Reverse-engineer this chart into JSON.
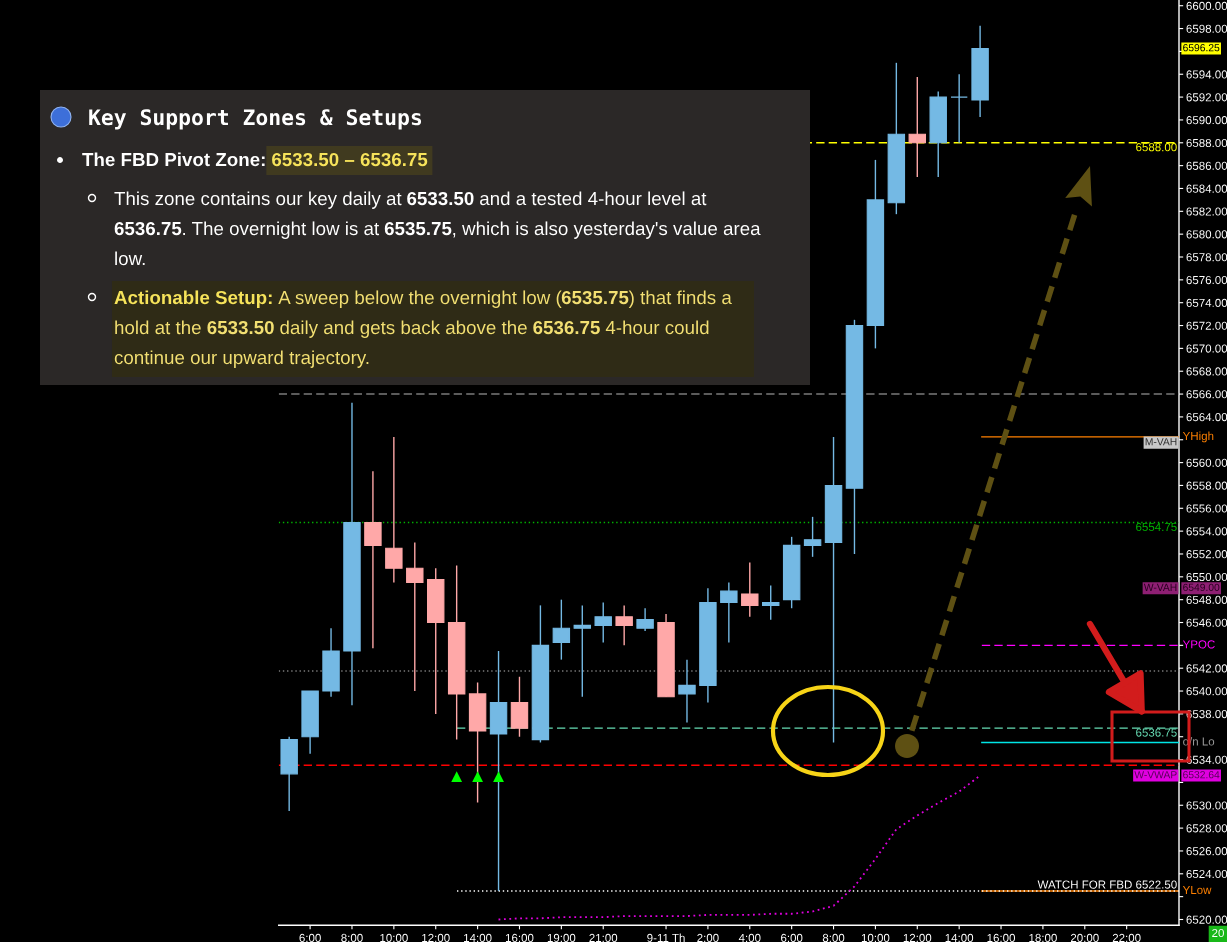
{
  "chart_data": {
    "type": "candlestick",
    "categories": [
      null,
      "6:00",
      null,
      "8:00",
      null,
      "10:00",
      null,
      "12:00",
      null,
      "14:00",
      null,
      "16:00",
      null,
      "19:00",
      null,
      "21:00",
      null,
      null,
      "9-11 Th",
      null,
      "2:00",
      null,
      "4:00",
      null,
      "6:00",
      null,
      "8:00",
      null,
      "10:00",
      null,
      "12:00",
      null,
      "14:00",
      null,
      "16:00",
      null,
      "18:00",
      null,
      "20:00",
      null,
      "22:00",
      null,
      null
    ],
    "ohlc": [
      [
        6532.75,
        6536.0,
        6529.5,
        6535.75
      ],
      [
        6536.0,
        6540.0,
        6534.5,
        6540.0
      ],
      [
        6540.0,
        6545.5,
        6539.5,
        6543.5
      ],
      [
        6543.5,
        6565.25,
        6538.75,
        6554.75
      ],
      [
        6554.75,
        6559.25,
        6543.75,
        6552.75
      ],
      [
        6552.5,
        6562.25,
        6549.5,
        6550.75
      ],
      [
        6550.75,
        6553.0,
        6540.0,
        6549.5
      ],
      [
        6549.75,
        6550.75,
        6538.0,
        6546.0
      ],
      [
        6546.0,
        6551.0,
        6535.75,
        6539.75
      ],
      [
        6539.75,
        6540.75,
        6530.25,
        6536.5
      ],
      [
        6536.25,
        6543.5,
        6522.5,
        6539.0
      ],
      [
        6539.0,
        6541.25,
        6536.0,
        6536.75
      ],
      [
        6535.75,
        6547.5,
        6535.5,
        6544.0
      ],
      [
        6544.25,
        6548.0,
        6542.75,
        6545.5
      ],
      [
        6545.5,
        6547.5,
        6539.5,
        6545.75
      ],
      [
        6545.75,
        6547.75,
        6544.25,
        6546.5
      ],
      [
        6546.5,
        6547.5,
        6544.0,
        6545.75
      ],
      [
        6545.5,
        6547.25,
        6545.25,
        6546.25
      ],
      [
        6546.0,
        6546.75,
        6539.5,
        6539.5
      ],
      [
        6539.75,
        6542.75,
        6537.25,
        6540.5
      ],
      [
        6540.5,
        6549.0,
        6539.0,
        6547.75
      ],
      [
        6547.75,
        6549.5,
        6544.25,
        6548.75
      ],
      [
        6548.5,
        6551.25,
        6546.5,
        6547.5
      ],
      [
        6547.5,
        6549.25,
        6546.25,
        6547.75
      ],
      [
        6548.0,
        6553.5,
        6547.25,
        6552.75
      ],
      [
        6552.75,
        6555.25,
        6551.75,
        6553.25
      ],
      [
        6553.0,
        6562.25,
        6535.5,
        6558.0
      ],
      [
        6557.75,
        6572.5,
        6552.0,
        6572.0
      ],
      [
        6572.0,
        6586.5,
        6570.0,
        6583.0
      ],
      [
        6582.75,
        6595.0,
        6581.75,
        6588.75
      ],
      [
        6588.75,
        6593.75,
        6585.0,
        6588.0
      ],
      [
        6588.0,
        6592.5,
        6585.0,
        6592.0
      ],
      [
        6592.0,
        6594.0,
        6588.0,
        6592.0
      ],
      [
        6591.75,
        6598.25,
        6590.25,
        6596.25
      ],
      null,
      null,
      null,
      null,
      null,
      null,
      null,
      null,
      null
    ],
    "colors": [
      "#74b9e4",
      "#74b9e4",
      "#74b9e4",
      "#74b9e4",
      "#ffa8a8",
      "#ffa8a8",
      "#ffa8a8",
      "#ffa8a8",
      "#ffa8a8",
      "#ffa8a8",
      "#74b9e4",
      "#ffa8a8",
      "#74b9e4",
      "#74b9e4",
      "#74b9e4",
      "#74b9e4",
      "#ffa8a8",
      "#74b9e4",
      "#ffa8a8",
      "#74b9e4",
      "#74b9e4",
      "#74b9e4",
      "#ffa8a8",
      "#74b9e4",
      "#74b9e4",
      "#74b9e4",
      "#74b9e4",
      "#74b9e4",
      "#74b9e4",
      "#74b9e4",
      "#ffa8a8",
      "#74b9e4",
      "#74b9e4",
      "#74b9e4",
      null,
      null,
      null,
      null,
      null,
      null,
      null,
      null,
      null
    ],
    "series": [
      {
        "type": "line",
        "color": "#e000e0",
        "line_style": "dotted",
        "values": [
          null,
          null,
          null,
          null,
          null,
          null,
          null,
          null,
          null,
          null,
          6520.0,
          6520.1,
          6520.1,
          6520.2,
          6520.2,
          6520.2,
          6520.3,
          6520.3,
          6520.3,
          6520.3,
          6520.4,
          6520.4,
          6520.4,
          6520.5,
          6520.5,
          6520.7,
          6521.2,
          6522.9,
          6525.3,
          6527.9,
          6529.1,
          6530.2,
          6531.2,
          6532.6,
          null,
          null,
          null,
          null,
          null,
          null,
          null,
          null,
          null
        ]
      },
      {
        "type": "scatter",
        "color": "#00ff00",
        "marker": "triangle",
        "values": [
          null,
          null,
          null,
          null,
          null,
          null,
          null,
          null,
          6532.5,
          6532.5,
          6532.5,
          null,
          null,
          null,
          null,
          null,
          null,
          null,
          null,
          null,
          null,
          null,
          null,
          null,
          null,
          null,
          null,
          null,
          null,
          null,
          null,
          null,
          null,
          null,
          null,
          null,
          null,
          null,
          null,
          null,
          null,
          null,
          null
        ]
      }
    ],
    "ylim": [
      6519.5,
      6600.5
    ],
    "yticks": [
      {
        "value": 6520,
        "label": "6520.00"
      },
      {
        "value": 6522,
        "label": null
      },
      {
        "value": 6524,
        "label": "6524.00"
      },
      {
        "value": 6526,
        "label": "6526.00"
      },
      {
        "value": 6528,
        "label": "6528.00"
      },
      {
        "value": 6530,
        "label": "6530.00"
      },
      {
        "value": 6532,
        "label": null
      },
      {
        "value": 6534,
        "label": "6534.00"
      },
      {
        "value": 6536,
        "label": null
      },
      {
        "value": 6538,
        "label": "6538.00"
      },
      {
        "value": 6540,
        "label": "6540.00"
      },
      {
        "value": 6542,
        "label": "6542.00"
      },
      {
        "value": 6544,
        "label": null
      },
      {
        "value": 6546,
        "label": "6546.00"
      },
      {
        "value": 6548,
        "label": "6548.00"
      },
      {
        "value": 6550,
        "label": "6550.00"
      },
      {
        "value": 6552,
        "label": "6552.00"
      },
      {
        "value": 6554,
        "label": "6554.00"
      },
      {
        "value": 6556,
        "label": "6556.00"
      },
      {
        "value": 6558,
        "label": "6558.00"
      },
      {
        "value": 6560,
        "label": "6560.00"
      },
      {
        "value": 6562,
        "label": null
      },
      {
        "value": 6564,
        "label": "6564.00"
      },
      {
        "value": 6566,
        "label": "6566.00"
      },
      {
        "value": 6568,
        "label": "6568.00"
      },
      {
        "value": 6570,
        "label": "6570.00"
      },
      {
        "value": 6572,
        "label": "6572.00"
      },
      {
        "value": 6574,
        "label": "6574.00"
      },
      {
        "value": 6576,
        "label": "6576.00"
      },
      {
        "value": 6578,
        "label": "6578.00"
      },
      {
        "value": 6580,
        "label": "6580.00"
      },
      {
        "value": 6582,
        "label": "6582.00"
      },
      {
        "value": 6584,
        "label": "6584.00"
      },
      {
        "value": 6586,
        "label": "6586.00"
      },
      {
        "value": 6588,
        "label": "6588.00"
      },
      {
        "value": 6590,
        "label": "6590.00"
      },
      {
        "value": 6592,
        "label": "6592.00"
      },
      {
        "value": 6594,
        "label": "6594.00"
      },
      {
        "value": 6596,
        "label": null
      },
      {
        "value": 6598,
        "label": "6598.00"
      },
      {
        "value": 6600,
        "label": "6600.00"
      }
    ],
    "ref_lines": [
      {
        "axis": "y",
        "value": 6588.0,
        "label": "6588.00",
        "color": "#ffff00",
        "line_style": "dashed"
      },
      {
        "axis": "y",
        "value": 6566.0,
        "color": "#7a7a7a",
        "line_style": "dashed"
      },
      {
        "axis": "y",
        "value": 6562.25,
        "label": "YHigh",
        "color": "#ff8000",
        "line_style": "solid"
      },
      {
        "axis": "y",
        "value": 6554.75,
        "label": "6554.75",
        "color": "#00b400",
        "line_style": "dotted"
      },
      {
        "axis": "y",
        "value": 6544.0,
        "label": "YPOC",
        "color": "#ff00ff",
        "line_style": "dashed"
      },
      {
        "axis": "y",
        "value": 6541.75,
        "color": "#7a7a7a",
        "line_style": "dotted"
      },
      {
        "axis": "y",
        "value": 6536.75,
        "label": "6536.75",
        "color": "#66dcb4",
        "line_style": "dashed"
      },
      {
        "axis": "y",
        "value": 6535.5,
        "label": "o/n Lo",
        "color": "#00e5e5",
        "line_style": "solid"
      },
      {
        "axis": "y",
        "value": 6533.5,
        "color": "#ff0000",
        "line_style": "dashed"
      },
      {
        "axis": "y",
        "value": 6522.5,
        "label": "YLow",
        "color": "#ff8000",
        "line_style": "solid"
      },
      {
        "axis": "y",
        "value": 6522.5,
        "label": "WATCH FOR FBD 6522.50",
        "color": "#ffffff",
        "line_style": "dotted"
      }
    ],
    "annotations": [
      "Key Support Zones & Setups",
      "The FBD Pivot Zone: 6533.50 – 6536.75",
      "This zone contains our key daily at 6533.50 and a tested 4-hour level at",
      "6536.75. The overnight low is at 6535.75, which is also yesterday's value area",
      "low.",
      "Actionable Setup: A sweep below the overnight low (6535.75) that finds a",
      "hold at the 6533.50 daily and gets back above the 6536.75 4-hour could",
      "continue our upward trajectory.",
      "W-VWAP",
      "6532.64",
      "20",
      {
        "text": "6596.25",
        "y": 6596.25
      },
      {
        "text": "M-VAH",
        "y": 6561.75
      },
      {
        "text": "W-VAH",
        "y": 6549.0
      },
      {
        "text": "6549.00",
        "y": 6549.0
      }
    ]
  }
}
